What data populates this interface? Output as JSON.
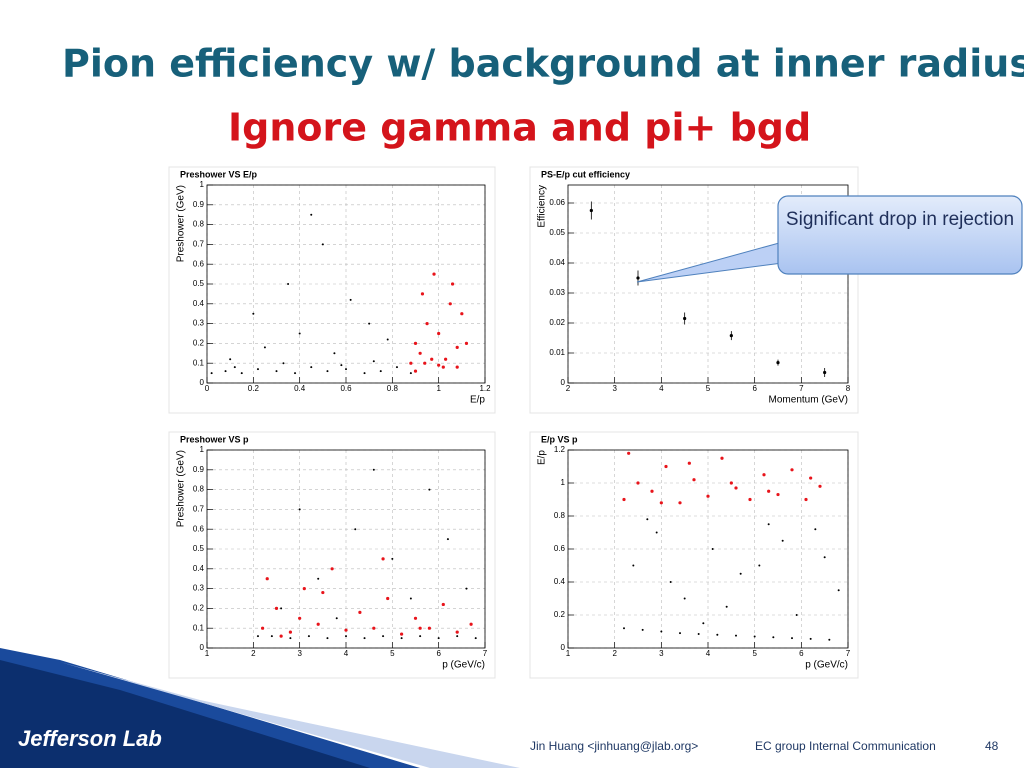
{
  "header": {
    "title": "Pion efficiency w/ background at inner radius.",
    "highlight": "Ignore gamma and pi+ bgd"
  },
  "chart_data": [
    {
      "type": "scatter",
      "title": "Preshower VS E/p",
      "x_label": "E/p",
      "y_label": "Preshower (GeV)",
      "xlim": [
        0,
        1.2
      ],
      "xticks": [
        0,
        0.2,
        0.4,
        0.6,
        0.8,
        1,
        1.2
      ],
      "ylim": [
        0,
        1
      ],
      "yticks": [
        0,
        0.1,
        0.2,
        0.3,
        0.4,
        0.5,
        0.6,
        0.7,
        0.8,
        0.9,
        1
      ],
      "grid": true,
      "series": [
        {
          "color": "#000000",
          "x": [
            0.02,
            0.08,
            0.15,
            0.22,
            0.3,
            0.38,
            0.45,
            0.52,
            0.6,
            0.68,
            0.75,
            0.82,
            0.88,
            0.1,
            0.25,
            0.4,
            0.55,
            0.7,
            0.35,
            0.5,
            0.62,
            0.2,
            0.45,
            0.78,
            0.12,
            0.33,
            0.58,
            0.72
          ],
          "values": [
            0.05,
            0.06,
            0.05,
            0.07,
            0.06,
            0.05,
            0.08,
            0.06,
            0.07,
            0.05,
            0.06,
            0.08,
            0.05,
            0.12,
            0.18,
            0.25,
            0.15,
            0.3,
            0.5,
            0.7,
            0.42,
            0.35,
            0.85,
            0.22,
            0.08,
            0.1,
            0.09,
            0.11
          ]
        },
        {
          "color": "#e8141b",
          "x": [
            0.88,
            0.9,
            0.92,
            0.95,
            0.97,
            1.0,
            1.02,
            1.05,
            1.08,
            1.1,
            0.93,
            0.98,
            1.03,
            1.12,
            0.9,
            1.0,
            1.06,
            0.94,
            1.08
          ],
          "values": [
            0.1,
            0.2,
            0.15,
            0.3,
            0.12,
            0.25,
            0.08,
            0.4,
            0.18,
            0.35,
            0.45,
            0.55,
            0.12,
            0.2,
            0.06,
            0.09,
            0.5,
            0.1,
            0.08
          ]
        }
      ]
    },
    {
      "type": "errorbar",
      "title": "PS-E/p cut efficiency",
      "x_label": "Momentum (GeV)",
      "y_label": "Efficiency",
      "xlim": [
        2,
        8
      ],
      "xticks": [
        2,
        3,
        4,
        5,
        6,
        7,
        8
      ],
      "ylim": [
        0,
        0.066
      ],
      "yticks": [
        0,
        0.01,
        0.02,
        0.03,
        0.04,
        0.05,
        0.06
      ],
      "grid": true,
      "series": [
        {
          "color": "#000000",
          "x": [
            2.5,
            3.5,
            4.5,
            5.5,
            6.5,
            7.5
          ],
          "values": [
            0.0575,
            0.035,
            0.0215,
            0.0158,
            0.0068,
            0.0035
          ],
          "errors": [
            0.003,
            0.0025,
            0.002,
            0.0015,
            0.001,
            0.0015
          ]
        }
      ]
    },
    {
      "type": "scatter",
      "title": "Preshower VS p",
      "x_label": "p (GeV/c)",
      "y_label": "Preshower (GeV)",
      "xlim": [
        1,
        7
      ],
      "xticks": [
        1,
        2,
        3,
        4,
        5,
        6,
        7
      ],
      "ylim": [
        0,
        1
      ],
      "yticks": [
        0,
        0.1,
        0.2,
        0.3,
        0.4,
        0.5,
        0.6,
        0.7,
        0.8,
        0.9,
        1
      ],
      "grid": true,
      "series": [
        {
          "color": "#000000",
          "x": [
            2.1,
            2.4,
            2.8,
            3.2,
            3.6,
            4.0,
            4.4,
            4.8,
            5.2,
            5.6,
            6.0,
            6.4,
            6.8,
            2.6,
            3.4,
            4.2,
            5.0,
            5.8,
            6.6,
            3.0,
            4.6,
            5.4,
            6.2,
            3.8
          ],
          "values": [
            0.06,
            0.06,
            0.05,
            0.06,
            0.05,
            0.06,
            0.05,
            0.06,
            0.05,
            0.06,
            0.05,
            0.06,
            0.05,
            0.2,
            0.35,
            0.6,
            0.45,
            0.8,
            0.3,
            0.7,
            0.9,
            0.25,
            0.55,
            0.15
          ]
        },
        {
          "color": "#e8141b",
          "x": [
            2.2,
            2.5,
            2.8,
            3.1,
            3.4,
            3.7,
            4.0,
            4.3,
            4.6,
            4.9,
            5.2,
            5.5,
            5.8,
            6.1,
            6.4,
            6.7,
            2.3,
            3.0,
            3.5,
            4.8,
            5.6,
            2.6
          ],
          "values": [
            0.1,
            0.2,
            0.08,
            0.3,
            0.12,
            0.4,
            0.09,
            0.18,
            0.1,
            0.25,
            0.07,
            0.15,
            0.1,
            0.22,
            0.08,
            0.12,
            0.35,
            0.15,
            0.28,
            0.45,
            0.1,
            0.06
          ]
        }
      ]
    },
    {
      "type": "scatter",
      "title": "E/p VS p",
      "x_label": "p (GeV/c)",
      "y_label": "E/p",
      "xlim": [
        1,
        7
      ],
      "xticks": [
        1,
        2,
        3,
        4,
        5,
        6,
        7
      ],
      "ylim": [
        0,
        1.2
      ],
      "yticks": [
        0,
        0.2,
        0.4,
        0.6,
        0.8,
        1,
        1.2
      ],
      "grid": true,
      "series": [
        {
          "color": "#000000",
          "x": [
            2.2,
            2.6,
            3.0,
            3.4,
            3.8,
            4.2,
            4.6,
            5.0,
            5.4,
            5.8,
            6.2,
            6.6,
            2.4,
            2.9,
            3.5,
            4.1,
            4.7,
            5.3,
            5.9,
            6.5,
            3.2,
            4.4,
            5.6,
            6.8,
            2.7,
            3.9,
            5.1,
            6.3
          ],
          "values": [
            0.12,
            0.11,
            0.1,
            0.09,
            0.085,
            0.08,
            0.075,
            0.07,
            0.065,
            0.06,
            0.055,
            0.05,
            0.5,
            0.7,
            0.3,
            0.6,
            0.45,
            0.75,
            0.2,
            0.55,
            0.4,
            0.25,
            0.65,
            0.35,
            0.78,
            0.15,
            0.5,
            0.72
          ]
        },
        {
          "color": "#e8141b",
          "x": [
            2.2,
            2.5,
            2.8,
            3.1,
            3.4,
            3.7,
            4.0,
            4.3,
            4.6,
            4.9,
            5.2,
            5.5,
            5.8,
            6.1,
            6.4,
            2.3,
            3.0,
            3.6,
            4.5,
            5.3,
            6.2
          ],
          "values": [
            0.9,
            1.0,
            0.95,
            1.1,
            0.88,
            1.02,
            0.92,
            1.15,
            0.97,
            0.9,
            1.05,
            0.93,
            1.08,
            0.9,
            0.98,
            1.18,
            0.88,
            1.12,
            1.0,
            0.95,
            1.03
          ]
        }
      ]
    }
  ],
  "callout": "Significant drop in rejection",
  "footer": {
    "logo": "Jefferson Lab",
    "author": "Jin Huang <jinhuang@jlab.org>",
    "group": "EC group Internal Communication",
    "page": 48
  }
}
